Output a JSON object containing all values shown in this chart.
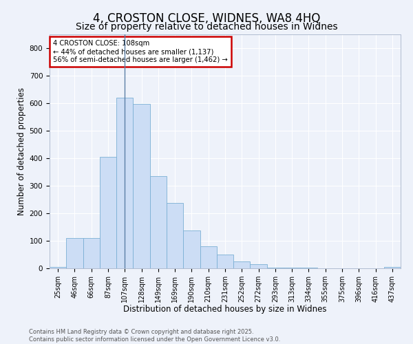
{
  "title": "4, CROSTON CLOSE, WIDNES, WA8 4HQ",
  "subtitle": "Size of property relative to detached houses in Widnes",
  "xlabel": "Distribution of detached houses by size in Widnes",
  "ylabel": "Number of detached properties",
  "categories": [
    "25sqm",
    "46sqm",
    "66sqm",
    "87sqm",
    "107sqm",
    "128sqm",
    "149sqm",
    "169sqm",
    "190sqm",
    "210sqm",
    "231sqm",
    "252sqm",
    "272sqm",
    "293sqm",
    "313sqm",
    "334sqm",
    "355sqm",
    "375sqm",
    "396sqm",
    "416sqm",
    "437sqm"
  ],
  "values": [
    5,
    110,
    110,
    405,
    620,
    598,
    335,
    238,
    137,
    79,
    50,
    24,
    15,
    3,
    3,
    2,
    1,
    0,
    0,
    0,
    5
  ],
  "bar_color": "#ccddf5",
  "bar_edge_color": "#7aafd4",
  "vline_x": 4,
  "vline_color": "#5b7fa6",
  "annotation_text": "4 CROSTON CLOSE: 108sqm\n← 44% of detached houses are smaller (1,137)\n56% of semi-detached houses are larger (1,462) →",
  "annotation_box_color": "#ffffff",
  "annotation_box_edge": "#cc0000",
  "background_color": "#eef2fa",
  "grid_color": "#ffffff",
  "footer_line1": "Contains HM Land Registry data © Crown copyright and database right 2025.",
  "footer_line2": "Contains public sector information licensed under the Open Government Licence v3.0.",
  "ylim": [
    0,
    850
  ],
  "yticks": [
    0,
    100,
    200,
    300,
    400,
    500,
    600,
    700,
    800
  ],
  "title_fontsize": 12,
  "subtitle_fontsize": 10,
  "tick_fontsize": 7,
  "label_fontsize": 8.5
}
